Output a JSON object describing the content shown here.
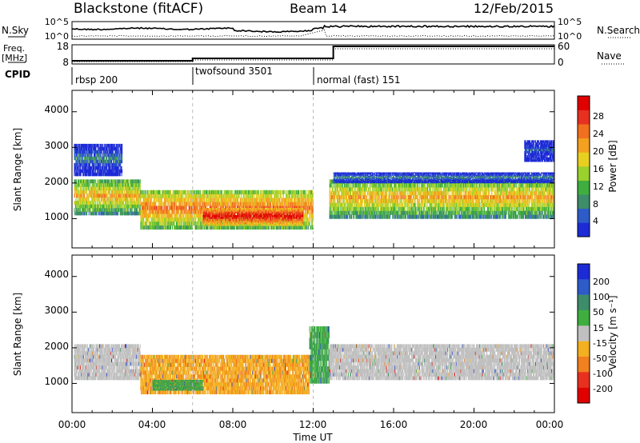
{
  "header": {
    "radar": "Blackstone (fitACF)",
    "beam": "Beam 14",
    "date": "12/Feb/2015"
  },
  "sky_panel": {
    "left_label": "N.Sky",
    "right_label": "N.Search",
    "left_ticks": [
      "10^5",
      "10^0"
    ],
    "right_ticks": [
      "10^5",
      "10^0"
    ]
  },
  "freq_panel": {
    "left_label_1": "Freq.",
    "left_label_2": "[MHz]",
    "right_label": "Nave",
    "left_ticks": [
      "18",
      "8"
    ],
    "right_ticks": [
      "60",
      "0"
    ]
  },
  "cpid": {
    "label": "CPID",
    "segments": [
      {
        "name": "rbsp 200",
        "start_hour": 0,
        "end_hour": 6
      },
      {
        "name": "twofsound 3501",
        "start_hour": 6,
        "end_hour": 12
      },
      {
        "name": "normal (fast) 151",
        "start_hour": 12,
        "end_hour": 24
      }
    ]
  },
  "x_axis": {
    "label": "Time UT",
    "ticks": [
      "00:00",
      "04:00",
      "08:00",
      "12:00",
      "16:00",
      "20:00",
      "00:00"
    ],
    "range_hours": [
      0,
      24
    ]
  },
  "power_panel": {
    "ylabel": "Slant Range [km]",
    "yticks": [
      "1000",
      "2000",
      "3000",
      "4000"
    ],
    "colorbar_label": "Power [dB]",
    "colorbar_ticks": [
      "4",
      "8",
      "12",
      "16",
      "20",
      "24",
      "28"
    ],
    "colors": [
      "#1d2bd6",
      "#2d5cc8",
      "#3d8c6a",
      "#3fae3f",
      "#9ad12c",
      "#e8d020",
      "#f4a020",
      "#f07020",
      "#e83020",
      "#e00000"
    ]
  },
  "velocity_panel": {
    "ylabel": "Slant Range [km]",
    "yticks": [
      "1000",
      "2000",
      "3000",
      "4000"
    ],
    "colorbar_label": "Velocity [m s⁻¹]",
    "colorbar_ticks": [
      "200",
      "100",
      "50",
      "15",
      "-15",
      "-50",
      "-100",
      "-200"
    ],
    "colors": [
      "#1d2bd6",
      "#2d5cc8",
      "#3d8c6a",
      "#3fae3f",
      "#c0c0c0",
      "#f4b020",
      "#f08020",
      "#e83020",
      "#e00000"
    ]
  },
  "chart_data": {
    "type": "heatmap",
    "x_range_hours": [
      0,
      24
    ],
    "y_range_km": [
      180,
      4600
    ],
    "mode_changes_hours": [
      6,
      12
    ],
    "power_bands": [
      {
        "t0": 0.1,
        "t1": 3.4,
        "r0": 1100,
        "r1": 2100,
        "level": 20
      },
      {
        "t0": 3.4,
        "t1": 12.0,
        "r0": 700,
        "r1": 1800,
        "level": 24
      },
      {
        "t0": 6.5,
        "t1": 11.5,
        "r0": 800,
        "r1": 1300,
        "level": 28
      },
      {
        "t0": 12.8,
        "t1": 24,
        "r0": 1000,
        "r1": 2100,
        "level": 20
      },
      {
        "t0": 0.1,
        "t1": 2.5,
        "r0": 2200,
        "r1": 3100,
        "level": 8
      },
      {
        "t0": 13.0,
        "t1": 24,
        "r0": 2000,
        "r1": 2300,
        "level": 8
      },
      {
        "t0": 22.5,
        "t1": 24,
        "r0": 2600,
        "r1": 3200,
        "level": 4
      }
    ],
    "velocity_bands": [
      {
        "t0": 0.1,
        "t1": 3.4,
        "r0": 1100,
        "r1": 2100,
        "value": 0
      },
      {
        "t0": 3.4,
        "t1": 11.8,
        "r0": 700,
        "r1": 1800,
        "value": -50
      },
      {
        "t0": 11.8,
        "t1": 12.8,
        "r0": 1000,
        "r1": 2600,
        "value": 50
      },
      {
        "t0": 12.8,
        "t1": 24,
        "r0": 1100,
        "r1": 2100,
        "value": 0
      },
      {
        "t0": 4.0,
        "t1": 6.5,
        "r0": 800,
        "r1": 1100,
        "value": 50
      }
    ]
  }
}
